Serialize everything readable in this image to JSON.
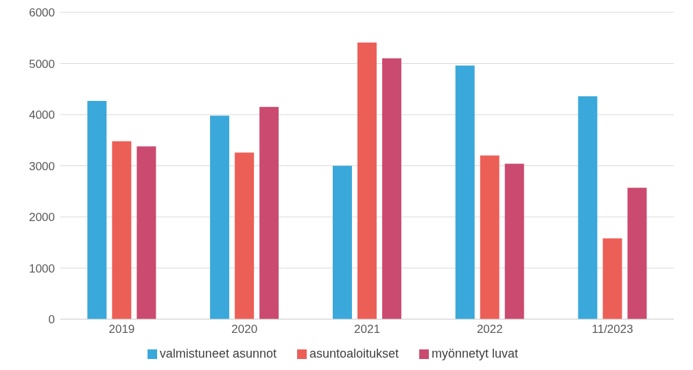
{
  "chart_data": {
    "type": "bar",
    "categories": [
      "2019",
      "2020",
      "2021",
      "2022",
      "11/2023"
    ],
    "series": [
      {
        "name": "valmistuneet asunnot",
        "color": "#3aa8da",
        "values": [
          4270,
          3980,
          3000,
          4960,
          4360
        ]
      },
      {
        "name": "asuntoaloitukset",
        "color": "#ec5f57",
        "values": [
          3480,
          3260,
          5410,
          3200,
          1580
        ]
      },
      {
        "name": "myönnetyt luvat",
        "color": "#cb4a6f",
        "values": [
          3380,
          4150,
          5100,
          3040,
          2570
        ]
      }
    ],
    "ylim": [
      0,
      6000
    ],
    "yticks": [
      0,
      1000,
      2000,
      3000,
      4000,
      5000,
      6000
    ],
    "grid": "y",
    "legend": "bottom"
  }
}
